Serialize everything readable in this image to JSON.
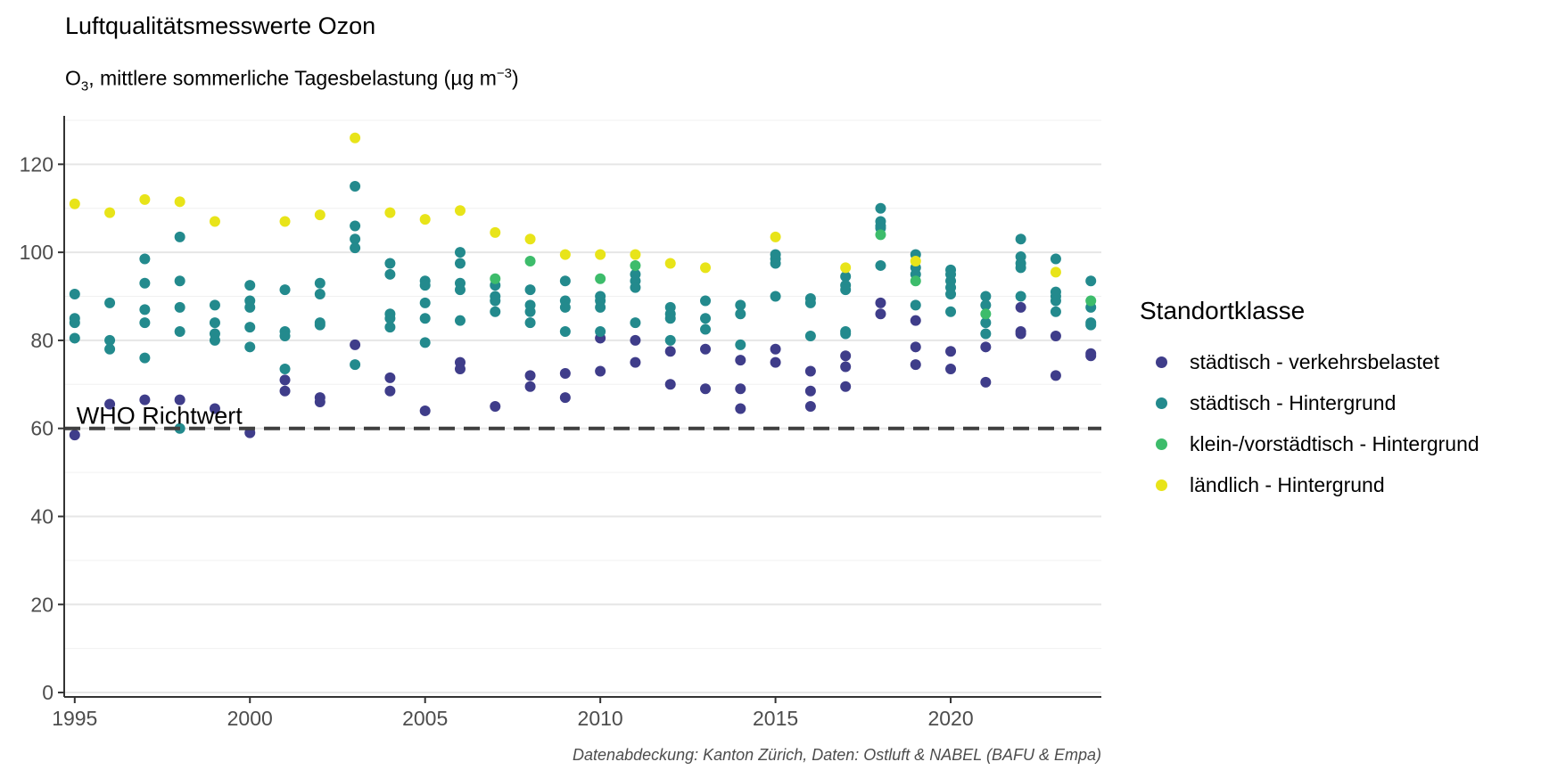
{
  "chart_data": {
    "type": "scatter",
    "title": "Luftqualitätsmesswerte Ozon",
    "subtitle": {
      "o": "O",
      "sub": "3",
      "text": ", mittlere sommerliche Tagesbelastung (µg m",
      "sup": "−3",
      "close": ")"
    },
    "caption": "Datenabdeckung: Kanton Zürich, Daten: Ostluft & NABEL (BAFU & Empa)",
    "xlim": [
      1994.7,
      2024.3
    ],
    "ylim": [
      -1,
      131
    ],
    "x_ticks": [
      1995,
      2000,
      2005,
      2010,
      2015,
      2020
    ],
    "y_ticks": [
      0,
      20,
      40,
      60,
      80,
      100,
      120
    ],
    "grid": true,
    "reference_line": {
      "value": 60,
      "label": "WHO Richtwert",
      "style": "dashed"
    },
    "legend": {
      "title": "Standortklasse",
      "placement": "right",
      "entries": [
        {
          "key": "verkehr",
          "label": "städtisch - verkehrsbelastet",
          "color": "#3f3d8a"
        },
        {
          "key": "stadt",
          "label": "städtisch - Hintergrund",
          "color": "#238a8d"
        },
        {
          "key": "vorstadt",
          "label": "klein-/vorstädtisch - Hintergrund",
          "color": "#3dbc6b"
        },
        {
          "key": "land",
          "label": "ländlich - Hintergrund",
          "color": "#e8e419"
        }
      ]
    },
    "series": [
      {
        "name": "städtisch - verkehrsbelastet",
        "color": "#3f3d8a",
        "points": [
          [
            1995,
            58.5
          ],
          [
            1996,
            65.5
          ],
          [
            1997,
            66.5
          ],
          [
            1998,
            66.5
          ],
          [
            1999,
            64.5
          ],
          [
            2000,
            59
          ],
          [
            2001,
            71
          ],
          [
            2001,
            68.5
          ],
          [
            2002,
            67
          ],
          [
            2002,
            66
          ],
          [
            2003,
            79
          ],
          [
            2004,
            71.5
          ],
          [
            2004,
            68.5
          ],
          [
            2005,
            64
          ],
          [
            2006,
            75
          ],
          [
            2006,
            73.5
          ],
          [
            2007,
            65
          ],
          [
            2008,
            72
          ],
          [
            2008,
            69.5
          ],
          [
            2009,
            72.5
          ],
          [
            2009,
            67
          ],
          [
            2010,
            80.5
          ],
          [
            2010,
            73
          ],
          [
            2011,
            80
          ],
          [
            2011,
            75
          ],
          [
            2012,
            77.5
          ],
          [
            2012,
            70
          ],
          [
            2013,
            78
          ],
          [
            2013,
            69
          ],
          [
            2014,
            75.5
          ],
          [
            2014,
            69
          ],
          [
            2014,
            64.5
          ],
          [
            2015,
            78
          ],
          [
            2015,
            75
          ],
          [
            2016,
            73
          ],
          [
            2016,
            68.5
          ],
          [
            2016,
            65
          ],
          [
            2017,
            76.5
          ],
          [
            2017,
            74
          ],
          [
            2017,
            69.5
          ],
          [
            2018,
            88.5
          ],
          [
            2018,
            86
          ],
          [
            2019,
            84.5
          ],
          [
            2019,
            78.5
          ],
          [
            2019,
            74.5
          ],
          [
            2020,
            77.5
          ],
          [
            2020,
            73.5
          ],
          [
            2021,
            78.5
          ],
          [
            2021,
            70.5
          ],
          [
            2022,
            87.5
          ],
          [
            2022,
            82
          ],
          [
            2022,
            81.5
          ],
          [
            2023,
            81
          ],
          [
            2023,
            72
          ],
          [
            2024,
            77
          ],
          [
            2024,
            76.5
          ]
        ]
      },
      {
        "name": "städtisch - Hintergrund",
        "color": "#238a8d",
        "points": [
          [
            1995,
            90.5
          ],
          [
            1995,
            85
          ],
          [
            1995,
            84
          ],
          [
            1995,
            80.5
          ],
          [
            1996,
            88.5
          ],
          [
            1996,
            80
          ],
          [
            1996,
            78
          ],
          [
            1997,
            98.5
          ],
          [
            1997,
            93
          ],
          [
            1997,
            87
          ],
          [
            1997,
            84
          ],
          [
            1997,
            76
          ],
          [
            1998,
            103.5
          ],
          [
            1998,
            93.5
          ],
          [
            1998,
            87.5
          ],
          [
            1998,
            82
          ],
          [
            1998,
            60
          ],
          [
            1999,
            88
          ],
          [
            1999,
            84
          ],
          [
            1999,
            81.5
          ],
          [
            1999,
            80
          ],
          [
            2000,
            92.5
          ],
          [
            2000,
            89
          ],
          [
            2000,
            87.5
          ],
          [
            2000,
            83
          ],
          [
            2000,
            78.5
          ],
          [
            2001,
            91.5
          ],
          [
            2001,
            82
          ],
          [
            2001,
            81
          ],
          [
            2001,
            73.5
          ],
          [
            2002,
            93
          ],
          [
            2002,
            90.5
          ],
          [
            2002,
            84
          ],
          [
            2002,
            83.5
          ],
          [
            2003,
            115
          ],
          [
            2003,
            106
          ],
          [
            2003,
            103
          ],
          [
            2003,
            101
          ],
          [
            2003,
            74.5
          ],
          [
            2004,
            97.5
          ],
          [
            2004,
            95
          ],
          [
            2004,
            86
          ],
          [
            2004,
            85
          ],
          [
            2004,
            83
          ],
          [
            2005,
            93.5
          ],
          [
            2005,
            92.5
          ],
          [
            2005,
            88.5
          ],
          [
            2005,
            85
          ],
          [
            2005,
            79.5
          ],
          [
            2006,
            100
          ],
          [
            2006,
            97.5
          ],
          [
            2006,
            93
          ],
          [
            2006,
            91.5
          ],
          [
            2006,
            84.5
          ],
          [
            2007,
            92.5
          ],
          [
            2007,
            90
          ],
          [
            2007,
            89
          ],
          [
            2007,
            86.5
          ],
          [
            2008,
            91.5
          ],
          [
            2008,
            88
          ],
          [
            2008,
            86.5
          ],
          [
            2008,
            84
          ],
          [
            2009,
            93.5
          ],
          [
            2009,
            89
          ],
          [
            2009,
            87.5
          ],
          [
            2009,
            82
          ],
          [
            2010,
            90
          ],
          [
            2010,
            89
          ],
          [
            2010,
            87.5
          ],
          [
            2010,
            82
          ],
          [
            2011,
            95
          ],
          [
            2011,
            93.5
          ],
          [
            2011,
            92
          ],
          [
            2011,
            84
          ],
          [
            2012,
            87.5
          ],
          [
            2012,
            86
          ],
          [
            2012,
            85
          ],
          [
            2012,
            80
          ],
          [
            2013,
            89
          ],
          [
            2013,
            85
          ],
          [
            2013,
            82.5
          ],
          [
            2014,
            88
          ],
          [
            2014,
            86
          ],
          [
            2014,
            79
          ],
          [
            2015,
            99.5
          ],
          [
            2015,
            98.5
          ],
          [
            2015,
            97.5
          ],
          [
            2015,
            90
          ],
          [
            2016,
            89.5
          ],
          [
            2016,
            88.5
          ],
          [
            2016,
            81
          ],
          [
            2017,
            94.5
          ],
          [
            2017,
            92.5
          ],
          [
            2017,
            91.5
          ],
          [
            2017,
            82
          ],
          [
            2017,
            81.5
          ],
          [
            2018,
            110
          ],
          [
            2018,
            107
          ],
          [
            2018,
            106
          ],
          [
            2018,
            105.5
          ],
          [
            2018,
            97
          ],
          [
            2019,
            99.5
          ],
          [
            2019,
            96.5
          ],
          [
            2019,
            95
          ],
          [
            2019,
            88
          ],
          [
            2020,
            96
          ],
          [
            2020,
            95
          ],
          [
            2020,
            93.5
          ],
          [
            2020,
            92
          ],
          [
            2020,
            90.5
          ],
          [
            2020,
            86.5
          ],
          [
            2021,
            90
          ],
          [
            2021,
            88
          ],
          [
            2021,
            84
          ],
          [
            2021,
            81.5
          ],
          [
            2022,
            103
          ],
          [
            2022,
            99
          ],
          [
            2022,
            97.5
          ],
          [
            2022,
            96.5
          ],
          [
            2022,
            90
          ],
          [
            2023,
            98.5
          ],
          [
            2023,
            91
          ],
          [
            2023,
            90
          ],
          [
            2023,
            89
          ],
          [
            2023,
            86.5
          ],
          [
            2024,
            93.5
          ],
          [
            2024,
            87.5
          ],
          [
            2024,
            84
          ],
          [
            2024,
            83.5
          ]
        ]
      },
      {
        "name": "klein-/vorstädtisch - Hintergrund",
        "color": "#3dbc6b",
        "points": [
          [
            2007,
            94
          ],
          [
            2008,
            98
          ],
          [
            2010,
            94
          ],
          [
            2011,
            97
          ],
          [
            2018,
            104
          ],
          [
            2019,
            93.5
          ],
          [
            2021,
            86
          ],
          [
            2024,
            89
          ]
        ]
      },
      {
        "name": "ländlich - Hintergrund",
        "color": "#e8e419",
        "points": [
          [
            1995,
            111
          ],
          [
            1996,
            109
          ],
          [
            1997,
            112
          ],
          [
            1998,
            111.5
          ],
          [
            1999,
            107
          ],
          [
            2001,
            107
          ],
          [
            2002,
            108.5
          ],
          [
            2003,
            126
          ],
          [
            2004,
            109
          ],
          [
            2005,
            107.5
          ],
          [
            2006,
            109.5
          ],
          [
            2007,
            104.5
          ],
          [
            2008,
            103
          ],
          [
            2009,
            99.5
          ],
          [
            2010,
            99.5
          ],
          [
            2011,
            99.5
          ],
          [
            2012,
            97.5
          ],
          [
            2013,
            96.5
          ],
          [
            2015,
            103.5
          ],
          [
            2017,
            96.5
          ],
          [
            2019,
            98
          ],
          [
            2023,
            95.5
          ]
        ]
      }
    ]
  }
}
